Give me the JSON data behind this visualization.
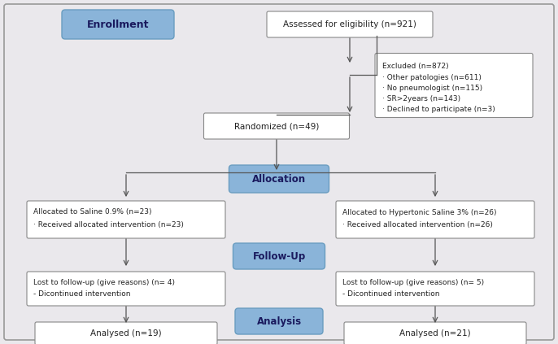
{
  "background_color": "#eae8ec",
  "box_white": "#ffffff",
  "box_blue_fill": "#8ab4d9",
  "box_blue_edge": "#6a9dc0",
  "box_white_edge": "#888888",
  "arrow_color": "#555555",
  "text_color_dark": "#222222",
  "text_color_white": "#1a1a5e",
  "title_enrollment": "Enrollment",
  "title_allocation": "Allocation",
  "title_followup": "Follow-Up",
  "title_analysis": "Analysis",
  "box_eligibility": "Assessed for eligibility (n=921)",
  "box_excluded_title": "Excluded (n=872)",
  "box_excluded_lines": [
    "· Other patologies (n=611)",
    "· No pneumologist (n=115)",
    "· SR>2years (n=143)",
    "· Declined to participate (n=3)"
  ],
  "box_randomized": "Randomized (n=49)",
  "box_saline_line1": "Allocated to Saline 0.9% (n=23)",
  "box_saline_line2": "· Received allocated intervention (n=23)",
  "box_hypertonic_line1": "Allocated to Hypertonic Saline 3% (n=26)",
  "box_hypertonic_line2": "· Received allocated intervention (n=26)",
  "box_lost_left_line1": "Lost to follow-up (give reasons) (n= 4)",
  "box_lost_left_line2": "- Dicontinued intervention",
  "box_lost_right_line1": "Lost to follow-up (give reasons) (n= 5)",
  "box_lost_right_line2": "- Dicontinued intervention",
  "box_analysed_left": "Analysed (n=19)",
  "box_analysed_right": "Analysed (n=21)"
}
